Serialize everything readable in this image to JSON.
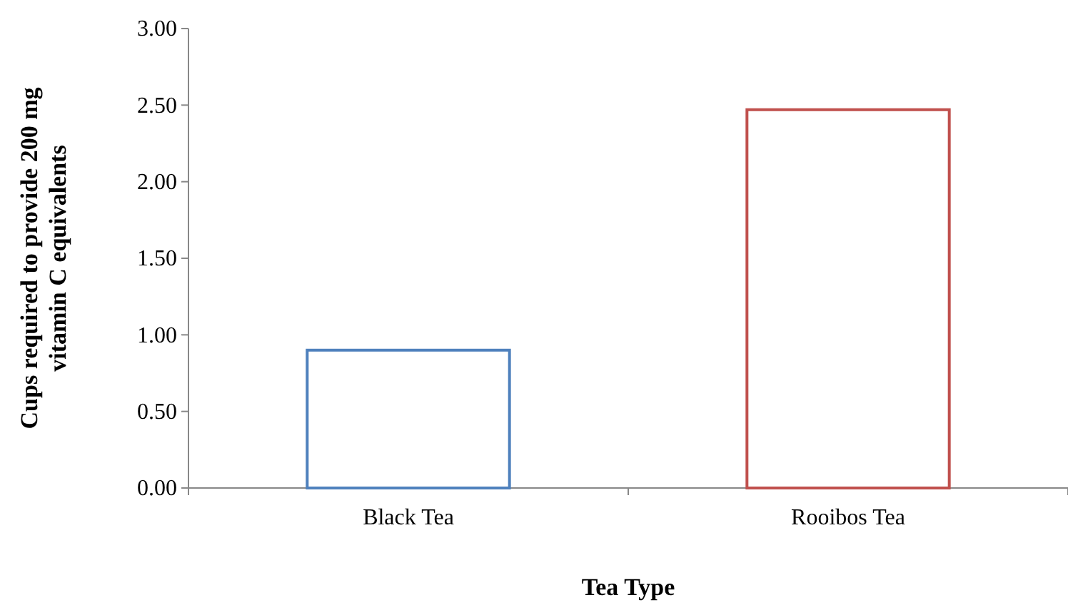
{
  "chart_data": {
    "type": "bar",
    "categories": [
      "Black Tea",
      "Rooibos Tea"
    ],
    "values": [
      0.9,
      2.47
    ],
    "colors": [
      "#4f81bd",
      "#c0504d"
    ],
    "xlabel": "Tea Type",
    "ylabel": "Cups required to provide 200 mg vitamin C equivalents",
    "ylim": [
      0,
      3
    ],
    "yticks": [
      {
        "value": 0,
        "label": "0.00"
      },
      {
        "value": 0.5,
        "label": "0.50"
      },
      {
        "value": 1,
        "label": "1.00"
      },
      {
        "value": 1.5,
        "label": "1.50"
      },
      {
        "value": 2,
        "label": "2.00"
      },
      {
        "value": 2.5,
        "label": "2.50"
      },
      {
        "value": 3,
        "label": "3.00"
      }
    ],
    "grid": false
  }
}
